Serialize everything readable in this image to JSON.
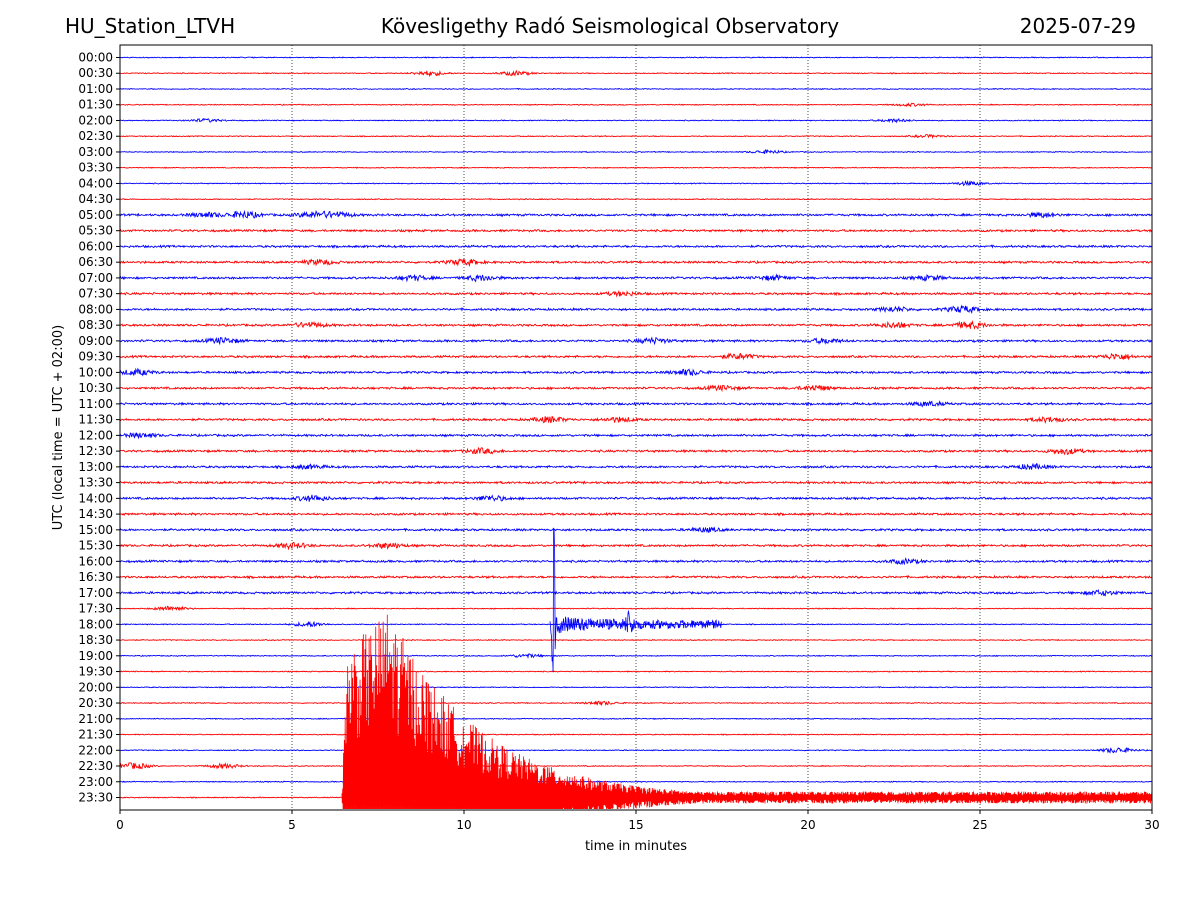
{
  "header": {
    "station": "HU_Station_LTVH",
    "title": "Kövesligethy Radó Seismological Observatory",
    "date": "2025-07-29"
  },
  "chart_data": {
    "type": "line",
    "subtype": "helicorder",
    "xlabel": "time in minutes",
    "ylabel": "UTC (local time = UTC + 02:00)",
    "xlim": [
      0,
      30
    ],
    "x_ticks": [
      0,
      5,
      10,
      15,
      20,
      25,
      30
    ],
    "grid": "vertical dotted at each x tick",
    "row_labels": [
      "00:00",
      "00:30",
      "01:00",
      "01:30",
      "02:00",
      "02:30",
      "03:00",
      "03:30",
      "04:00",
      "04:30",
      "05:00",
      "05:30",
      "06:00",
      "06:30",
      "07:00",
      "07:30",
      "08:00",
      "08:30",
      "09:00",
      "09:30",
      "10:00",
      "10:30",
      "11:00",
      "11:30",
      "12:00",
      "12:30",
      "13:00",
      "13:30",
      "14:00",
      "14:30",
      "15:00",
      "15:30",
      "16:00",
      "16:30",
      "17:00",
      "17:30",
      "18:00",
      "18:30",
      "19:00",
      "19:30",
      "20:00",
      "20:30",
      "21:00",
      "21:30",
      "22:00",
      "22:30",
      "23:00",
      "23:30"
    ],
    "trace_colors": [
      "#0000ff",
      "#ff0000"
    ],
    "events": [
      {
        "row": "18:00",
        "start_min": 12.5,
        "peak_min": 12.6,
        "end_min": 17.5,
        "peak_rows_up": 8,
        "peak_rows_down": 5,
        "secondary_min": 14.8,
        "color": "#0000ff"
      },
      {
        "row": "23:30",
        "start_min": 6.45,
        "peak_min": 7.8,
        "end_min": 30,
        "peak_rows_up": 12,
        "color": "#ff0000"
      }
    ],
    "bursts": [
      {
        "row": "00:30",
        "min": 9.0,
        "amp": 2.2
      },
      {
        "row": "00:30",
        "min": 11.5,
        "amp": 2.0
      },
      {
        "row": "01:30",
        "min": 23.0,
        "amp": 1.2
      },
      {
        "row": "02:00",
        "min": 2.5,
        "amp": 1.5
      },
      {
        "row": "02:00",
        "min": 22.5,
        "amp": 1.4
      },
      {
        "row": "02:30",
        "min": 23.5,
        "amp": 1.2
      },
      {
        "row": "03:00",
        "min": 18.8,
        "amp": 1.6
      },
      {
        "row": "04:00",
        "min": 24.7,
        "amp": 1.8
      },
      {
        "row": "05:00",
        "min": 2.5,
        "amp": 2.2
      },
      {
        "row": "05:00",
        "min": 3.6,
        "amp": 3.0
      },
      {
        "row": "05:00",
        "min": 5.6,
        "amp": 2.6
      },
      {
        "row": "05:00",
        "min": 6.3,
        "amp": 2.4
      },
      {
        "row": "05:00",
        "min": 26.8,
        "amp": 2.0
      },
      {
        "row": "06:30",
        "min": 5.8,
        "amp": 2.2
      },
      {
        "row": "06:30",
        "min": 10.0,
        "amp": 2.6
      },
      {
        "row": "07:00",
        "min": 8.5,
        "amp": 2.2
      },
      {
        "row": "07:00",
        "min": 10.5,
        "amp": 2.6
      },
      {
        "row": "07:00",
        "min": 19.0,
        "amp": 2.0
      },
      {
        "row": "07:00",
        "min": 23.5,
        "amp": 2.0
      },
      {
        "row": "07:30",
        "min": 14.6,
        "amp": 1.8
      },
      {
        "row": "08:00",
        "min": 22.5,
        "amp": 2.0
      },
      {
        "row": "08:00",
        "min": 24.5,
        "amp": 3.0
      },
      {
        "row": "08:30",
        "min": 5.5,
        "amp": 2.4
      },
      {
        "row": "08:30",
        "min": 22.5,
        "amp": 2.4
      },
      {
        "row": "08:30",
        "min": 24.7,
        "amp": 3.0
      },
      {
        "row": "09:00",
        "min": 3.0,
        "amp": 2.6
      },
      {
        "row": "09:00",
        "min": 15.5,
        "amp": 2.4
      },
      {
        "row": "09:00",
        "min": 20.5,
        "amp": 2.2
      },
      {
        "row": "09:30",
        "min": 18.0,
        "amp": 2.4
      },
      {
        "row": "09:30",
        "min": 29.0,
        "amp": 2.6
      },
      {
        "row": "10:00",
        "min": 0.5,
        "amp": 2.6
      },
      {
        "row": "10:00",
        "min": 16.5,
        "amp": 2.6
      },
      {
        "row": "10:30",
        "min": 17.5,
        "amp": 2.0
      },
      {
        "row": "10:30",
        "min": 20.2,
        "amp": 2.4
      },
      {
        "row": "11:00",
        "min": 23.5,
        "amp": 2.0
      },
      {
        "row": "11:30",
        "min": 12.5,
        "amp": 2.6
      },
      {
        "row": "11:30",
        "min": 14.5,
        "amp": 2.2
      },
      {
        "row": "11:30",
        "min": 27.0,
        "amp": 2.2
      },
      {
        "row": "12:00",
        "min": 0.6,
        "amp": 2.0
      },
      {
        "row": "12:30",
        "min": 10.5,
        "amp": 2.4
      },
      {
        "row": "12:30",
        "min": 27.5,
        "amp": 2.6
      },
      {
        "row": "13:00",
        "min": 5.5,
        "amp": 1.6
      },
      {
        "row": "13:00",
        "min": 26.5,
        "amp": 2.2
      },
      {
        "row": "14:00",
        "min": 5.6,
        "amp": 2.6
      },
      {
        "row": "14:00",
        "min": 10.8,
        "amp": 2.4
      },
      {
        "row": "15:00",
        "min": 17.0,
        "amp": 1.8
      },
      {
        "row": "15:30",
        "min": 5.0,
        "amp": 2.4
      },
      {
        "row": "15:30",
        "min": 7.8,
        "amp": 2.4
      },
      {
        "row": "16:00",
        "min": 22.8,
        "amp": 2.0
      },
      {
        "row": "17:00",
        "min": 28.5,
        "amp": 2.2
      },
      {
        "row": "17:30",
        "min": 1.5,
        "amp": 2.2
      },
      {
        "row": "18:00",
        "min": 5.5,
        "amp": 2.2
      },
      {
        "row": "19:00",
        "min": 11.8,
        "amp": 1.6
      },
      {
        "row": "20:30",
        "min": 14.0,
        "amp": 1.6
      },
      {
        "row": "22:00",
        "min": 29.0,
        "amp": 2.6
      },
      {
        "row": "22:30",
        "min": 0.4,
        "amp": 3.0
      },
      {
        "row": "22:30",
        "min": 3.0,
        "amp": 2.2
      }
    ]
  }
}
